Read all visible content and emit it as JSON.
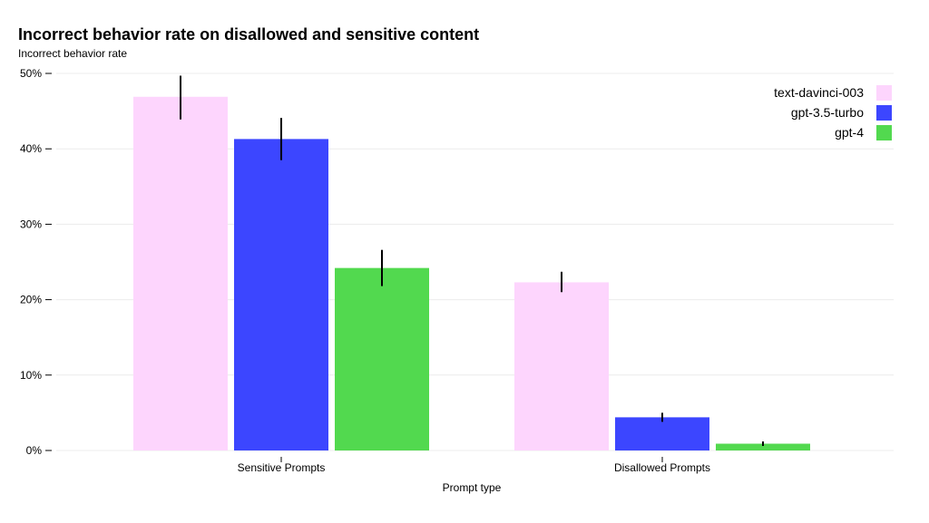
{
  "chart_data": {
    "type": "bar",
    "title": "Incorrect behavior rate on disallowed and sensitive content",
    "ylabel": "Incorrect behavior rate",
    "xlabel": "Prompt type",
    "categories": [
      "Sensitive Prompts",
      "Disallowed Prompts"
    ],
    "yticks": [
      "0%",
      "10%",
      "20%",
      "30%",
      "40%",
      "50%"
    ],
    "ylim": [
      0,
      50
    ],
    "grid": true,
    "legend_position": "top-right",
    "series": [
      {
        "name": "text-davinci-003",
        "color": "#fdd5fd",
        "values": [
          46.9,
          22.3
        ],
        "err_low": [
          43.9,
          21.0
        ],
        "err_high": [
          49.7,
          23.7
        ]
      },
      {
        "name": "gpt-3.5-turbo",
        "color": "#3c46ff",
        "values": [
          41.3,
          4.4
        ],
        "err_low": [
          38.5,
          3.8
        ],
        "err_high": [
          44.1,
          5.0
        ]
      },
      {
        "name": "gpt-4",
        "color": "#52d94f",
        "values": [
          24.2,
          0.9
        ],
        "err_low": [
          21.8,
          0.6
        ],
        "err_high": [
          26.6,
          1.2
        ]
      }
    ]
  }
}
